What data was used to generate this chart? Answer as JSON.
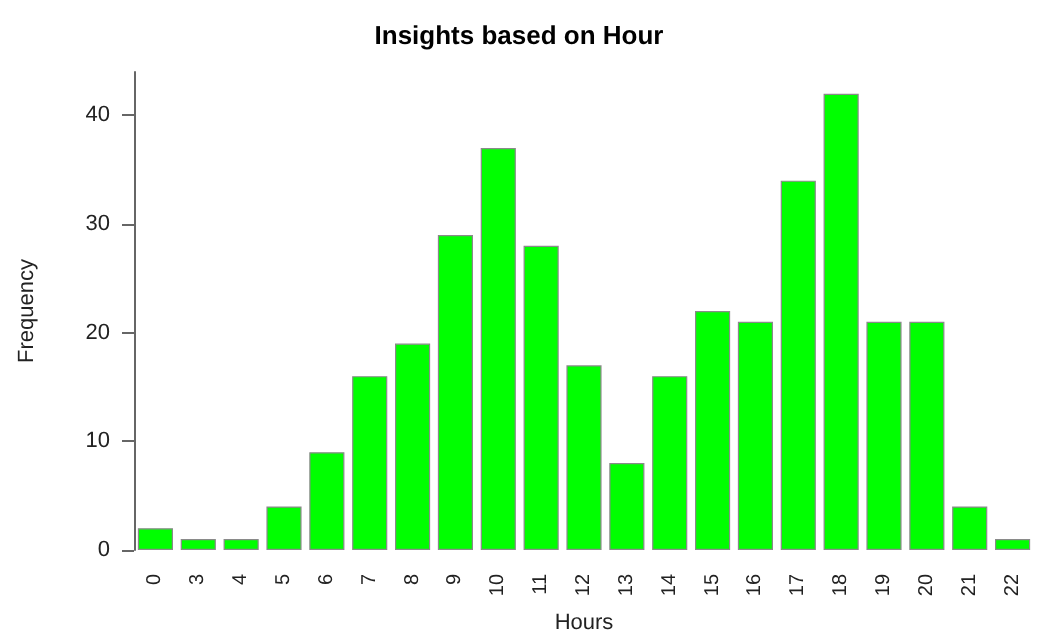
{
  "chart_data": {
    "type": "bar",
    "title": "Insights based on Hour",
    "xlabel": "Hours",
    "ylabel": "Frequency",
    "categories": [
      "0",
      "3",
      "4",
      "5",
      "6",
      "7",
      "8",
      "9",
      "10",
      "11",
      "12",
      "13",
      "14",
      "15",
      "16",
      "17",
      "18",
      "19",
      "20",
      "21",
      "22"
    ],
    "values": [
      2,
      1,
      1,
      4,
      9,
      16,
      19,
      29,
      37,
      28,
      17,
      8,
      16,
      22,
      21,
      34,
      42,
      21,
      21,
      4,
      1
    ],
    "color": "#00ff00",
    "ylim": [
      0,
      44
    ],
    "yticks": [
      0,
      10,
      20,
      30,
      40
    ],
    "grid": false
  }
}
